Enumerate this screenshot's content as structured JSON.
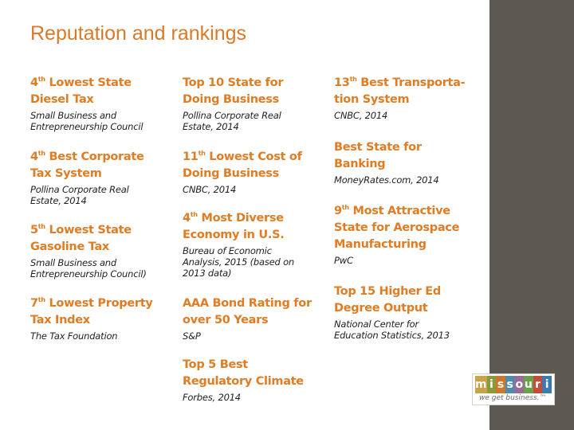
{
  "title": "Reputation and rankings",
  "items": [
    {
      "rank": "4",
      "sup": "th",
      "rest": " Lowest State\nDiesel Tax",
      "source": "Small Business and\nEntrepreneurship Council"
    },
    {
      "rank": "4",
      "sup": "th",
      "rest": " Best Corporate\nTax System",
      "source": "Pollina Corporate Real\nEstate, 2014"
    },
    {
      "rank": "5",
      "sup": "th",
      "rest": " Lowest State\nGasoline Tax",
      "source": "Small Business and\nEntrepreneurship Council)"
    },
    {
      "rank": "7",
      "sup": "th",
      "rest": " Lowest Property\nTax Index",
      "source": "The Tax Foundation"
    },
    {
      "rank": "Top 10 State for\nDoing Business",
      "sup": "",
      "rest": "",
      "source": "Pollina Corporate Real\nEstate, 2014"
    },
    {
      "rank": "11",
      "sup": "th",
      "rest": " Lowest Cost of\nDoing Business",
      "source": "CNBC, 2014"
    },
    {
      "rank": "4",
      "sup": "th",
      "rest": " Most Diverse\nEconomy in U.S.",
      "source": "Bureau of Economic\nAnalysis, 2015 (based on\n2013 data)"
    },
    {
      "rank": "AAA Bond Rating for\nover 50 Years",
      "sup": "",
      "rest": "",
      "source": "S&P"
    },
    {
      "rank": "Top 5 Best\nRegulatory Climate",
      "sup": "",
      "rest": "",
      "source": "Forbes, 2014"
    },
    {
      "rank": "13",
      "sup": "th",
      "rest": " Best Transporta-\ntion System",
      "source": "CNBC, 2014"
    },
    {
      "rank": "Best State for\nBanking",
      "sup": "",
      "rest": "",
      "source": "MoneyRates.com, 2014"
    },
    {
      "rank": "9",
      "sup": "th",
      "rest": " Most Attractive\nState for Aerospace\nManufacturing",
      "source": "PwC"
    },
    {
      "rank": "Top 15 Higher Ed\nDegree Output",
      "sup": "",
      "rest": "",
      "source": "National Center for\nEducation Statistics, 2013"
    }
  ],
  "logo": {
    "letters": [
      "m",
      "i",
      "s",
      "s",
      "o",
      "u",
      "r",
      "i"
    ],
    "colors": [
      "#c8a34a",
      "#8a9a3a",
      "#d0762a",
      "#4d8bb0",
      "#9a6a9a",
      "#6aa04a",
      "#c84a3a",
      "#3a7ab0"
    ],
    "tagline": "we get business.™"
  }
}
